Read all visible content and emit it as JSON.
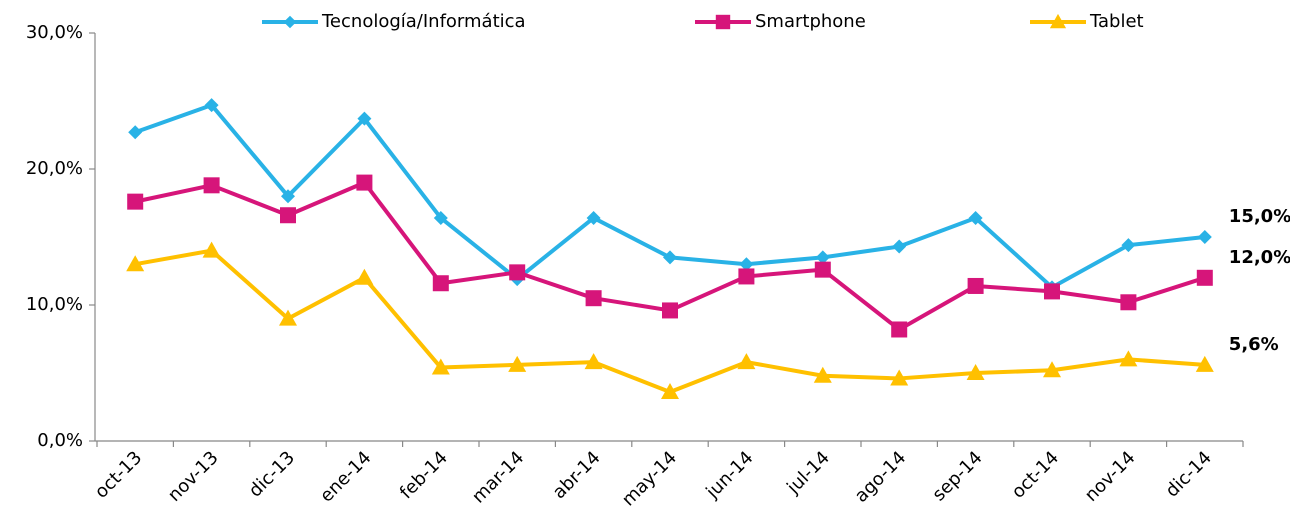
{
  "chart_data": {
    "type": "line",
    "categories": [
      "oct-13",
      "nov-13",
      "dic-13",
      "ene-14",
      "feb-14",
      "mar-14",
      "abr-14",
      "may-14",
      "jun-14",
      "jul-14",
      "ago-14",
      "sep-14",
      "oct-14",
      "nov-14",
      "dic-14"
    ],
    "series": [
      {
        "name": "Tecnología/Informática",
        "color": "#29b2e6",
        "marker": "diamond",
        "values": [
          22.7,
          24.7,
          18.0,
          23.7,
          16.4,
          11.9,
          16.4,
          13.5,
          13.0,
          13.5,
          14.3,
          16.4,
          11.3,
          14.4,
          15.0
        ],
        "value_labels": [
          null,
          null,
          null,
          null,
          null,
          null,
          null,
          null,
          null,
          null,
          null,
          null,
          null,
          null,
          "15,0%"
        ]
      },
      {
        "name": "Smartphone",
        "color": "#d6157a",
        "marker": "square",
        "values": [
          17.6,
          18.8,
          16.6,
          19.0,
          11.6,
          12.4,
          10.5,
          9.6,
          12.1,
          12.6,
          8.2,
          11.4,
          11.0,
          10.2,
          12.0
        ],
        "value_labels": [
          null,
          null,
          null,
          null,
          null,
          null,
          null,
          null,
          null,
          null,
          null,
          null,
          null,
          null,
          "12,0%"
        ]
      },
      {
        "name": "Tablet",
        "color": "#ffc000",
        "marker": "triangle",
        "values": [
          13.0,
          14.0,
          9.0,
          12.0,
          5.4,
          5.6,
          5.8,
          3.6,
          5.8,
          4.8,
          4.6,
          5.0,
          5.2,
          6.0,
          5.6
        ],
        "value_labels": [
          null,
          null,
          null,
          null,
          null,
          null,
          null,
          null,
          null,
          null,
          null,
          null,
          null,
          null,
          "5,6%"
        ]
      }
    ],
    "ylim": [
      0,
      30
    ],
    "yticks": [
      {
        "value": 0,
        "label": "0,0%"
      },
      {
        "value": 10,
        "label": "10,0%"
      },
      {
        "value": 20,
        "label": "20,0%"
      },
      {
        "value": 30,
        "label": "30,0%"
      }
    ],
    "grid": false
  }
}
